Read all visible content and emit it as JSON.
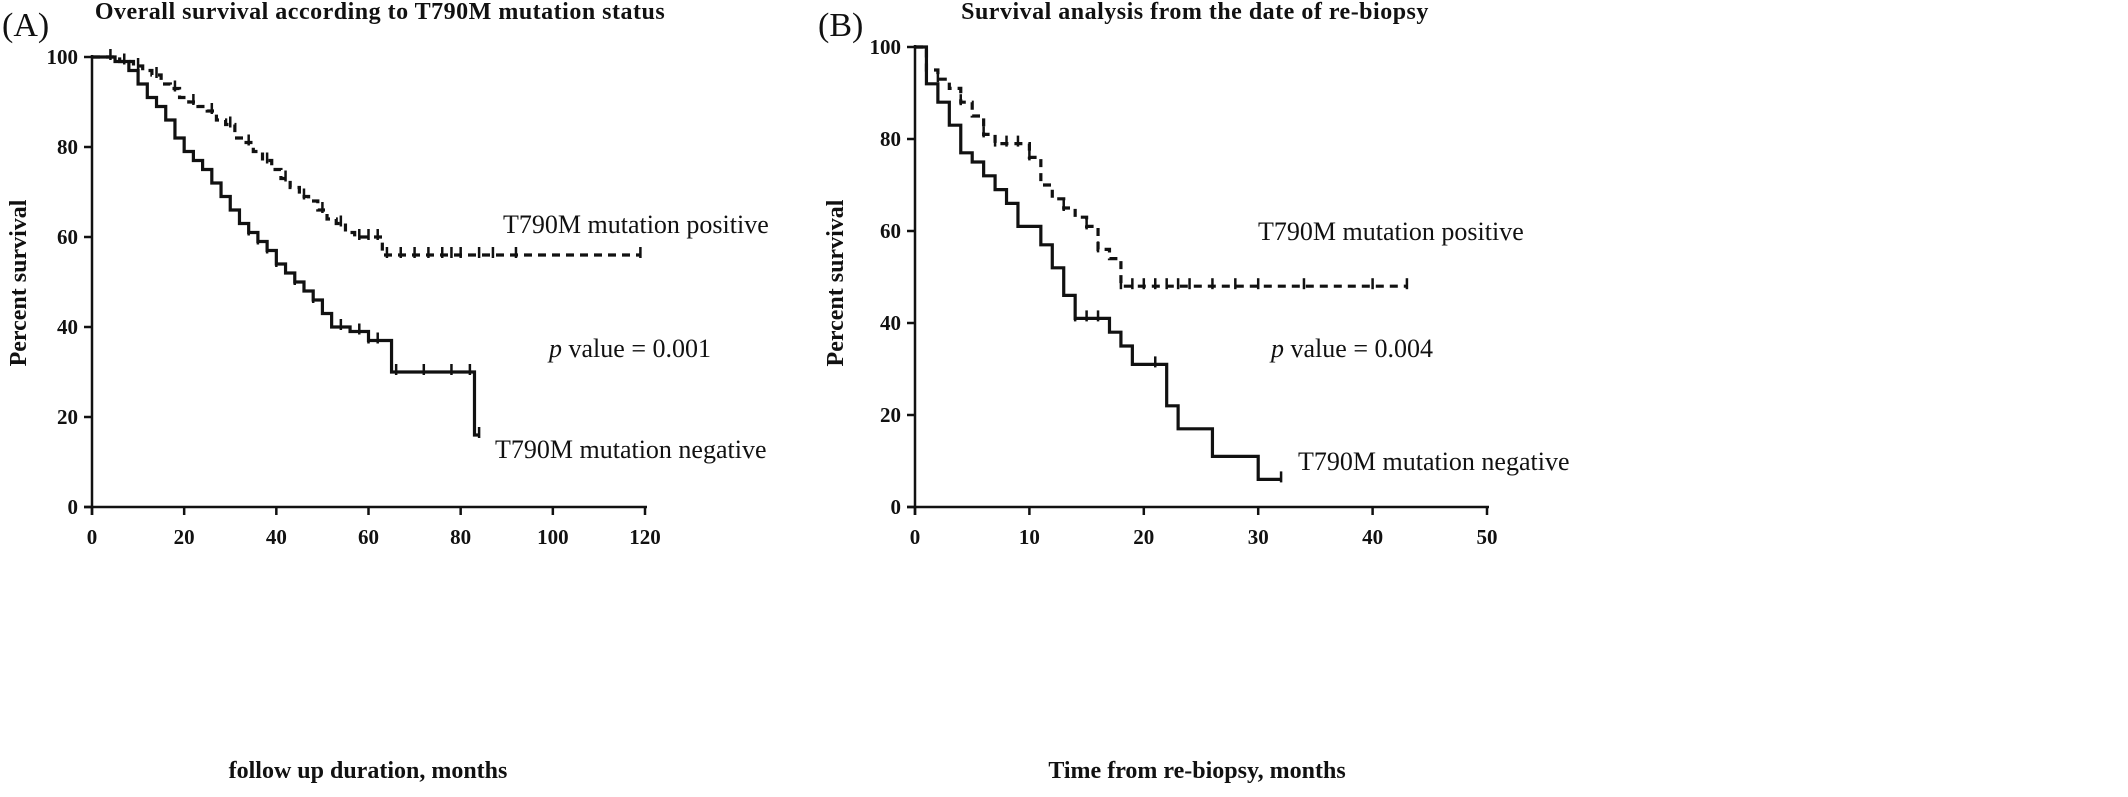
{
  "chart_data": [
    {
      "type": "line",
      "subtype": "kaplan-meier",
      "panel_label": "(A)",
      "title": "Overall survival according to T790M mutation status",
      "xlabel": "follow up duration, months",
      "ylabel": "Percent survival",
      "xlim": [
        0,
        120
      ],
      "ylim": [
        0,
        100
      ],
      "xticks": [
        0,
        20,
        40,
        60,
        80,
        100,
        120
      ],
      "yticks": [
        0,
        20,
        40,
        60,
        80,
        100
      ],
      "grid": false,
      "annotation": {
        "italic": "p",
        "rest": " value = 0.001"
      },
      "series": [
        {
          "name": "T790M mutation positive",
          "style": "dashed",
          "steps": [
            [
              0,
              100
            ],
            [
              6,
              99
            ],
            [
              9,
              98
            ],
            [
              11,
              97
            ],
            [
              13,
              96
            ],
            [
              15,
              94
            ],
            [
              17,
              93
            ],
            [
              19,
              91
            ],
            [
              21,
              90
            ],
            [
              23,
              89
            ],
            [
              25,
              88
            ],
            [
              27,
              86
            ],
            [
              29,
              85
            ],
            [
              31,
              82
            ],
            [
              33,
              81
            ],
            [
              35,
              79
            ],
            [
              37,
              77
            ],
            [
              39,
              75
            ],
            [
              41,
              73
            ],
            [
              43,
              71
            ],
            [
              45,
              69
            ],
            [
              47,
              68
            ],
            [
              49,
              66
            ],
            [
              51,
              64
            ],
            [
              53,
              63
            ],
            [
              55,
              61
            ],
            [
              57,
              60
            ],
            [
              59,
              60
            ],
            [
              63,
              56
            ],
            [
              119,
              56
            ]
          ],
          "censored": [
            4,
            7,
            10,
            14,
            18,
            22,
            26,
            30,
            34,
            38,
            42,
            46,
            50,
            54,
            58,
            60,
            62,
            64,
            67,
            70,
            73,
            76,
            78,
            80,
            84,
            87,
            92,
            119
          ]
        },
        {
          "name": "T790M mutation negative",
          "style": "solid",
          "steps": [
            [
              0,
              100
            ],
            [
              2,
              100
            ],
            [
              5,
              99
            ],
            [
              8,
              97
            ],
            [
              10,
              94
            ],
            [
              12,
              91
            ],
            [
              14,
              89
            ],
            [
              16,
              86
            ],
            [
              18,
              82
            ],
            [
              20,
              79
            ],
            [
              22,
              77
            ],
            [
              24,
              75
            ],
            [
              26,
              72
            ],
            [
              28,
              69
            ],
            [
              30,
              66
            ],
            [
              32,
              63
            ],
            [
              34,
              61
            ],
            [
              36,
              59
            ],
            [
              38,
              57
            ],
            [
              40,
              54
            ],
            [
              42,
              52
            ],
            [
              44,
              50
            ],
            [
              46,
              48
            ],
            [
              48,
              46
            ],
            [
              50,
              43
            ],
            [
              52,
              40
            ],
            [
              56,
              39
            ],
            [
              60,
              37
            ],
            [
              65,
              30
            ],
            [
              83,
              30
            ],
            [
              83,
              16
            ],
            [
              84,
              16
            ]
          ],
          "censored": [
            34,
            36,
            38,
            40,
            44,
            48,
            54,
            58,
            60,
            62,
            66,
            72,
            78,
            82,
            84
          ]
        }
      ]
    },
    {
      "type": "line",
      "subtype": "kaplan-meier",
      "panel_label": "(B)",
      "title": "Survival analysis from the date of re-biopsy",
      "xlabel": "Time from re-biopsy, months",
      "ylabel": "Percent survival",
      "xlim": [
        0,
        50
      ],
      "ylim": [
        0,
        100
      ],
      "xticks": [
        0,
        10,
        20,
        30,
        40,
        50
      ],
      "yticks": [
        0,
        20,
        40,
        60,
        80,
        100
      ],
      "grid": false,
      "annotation": {
        "italic": "p",
        "rest": " value = 0.004"
      },
      "series": [
        {
          "name": "T790M mutation positive",
          "style": "dashed",
          "steps": [
            [
              0,
              100
            ],
            [
              1,
              95
            ],
            [
              2,
              93
            ],
            [
              3,
              91
            ],
            [
              4,
              88
            ],
            [
              5,
              85
            ],
            [
              6,
              81
            ],
            [
              7,
              79
            ],
            [
              10,
              76
            ],
            [
              11,
              70
            ],
            [
              12,
              67
            ],
            [
              13,
              65
            ],
            [
              14,
              63
            ],
            [
              15,
              61
            ],
            [
              16,
              56
            ],
            [
              17,
              54
            ],
            [
              18,
              48
            ],
            [
              43,
              48
            ]
          ],
          "censored": [
            2,
            4,
            6,
            7,
            8,
            9,
            10,
            13,
            15,
            16,
            18,
            19,
            20,
            21,
            22,
            23,
            24,
            26,
            28,
            30,
            34,
            40,
            43
          ]
        },
        {
          "name": "T790M mutation negative",
          "style": "solid",
          "steps": [
            [
              0,
              100
            ],
            [
              1,
              92
            ],
            [
              2,
              88
            ],
            [
              3,
              83
            ],
            [
              4,
              77
            ],
            [
              5,
              75
            ],
            [
              6,
              72
            ],
            [
              7,
              69
            ],
            [
              8,
              66
            ],
            [
              9,
              61
            ],
            [
              11,
              57
            ],
            [
              12,
              52
            ],
            [
              13,
              46
            ],
            [
              14,
              41
            ],
            [
              16,
              41
            ],
            [
              17,
              38
            ],
            [
              18,
              35
            ],
            [
              19,
              31
            ],
            [
              21,
              31
            ],
            [
              22,
              22
            ],
            [
              23,
              17
            ],
            [
              26,
              11
            ],
            [
              30,
              6
            ],
            [
              32,
              6
            ]
          ],
          "censored": [
            14,
            15,
            16,
            21,
            32
          ]
        }
      ]
    }
  ]
}
